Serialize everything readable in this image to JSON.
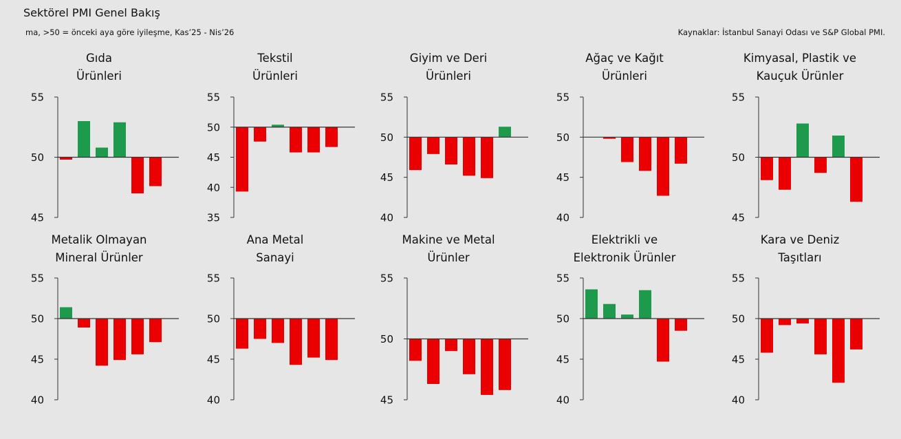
{
  "header": {
    "title": "Sektörel PMI Genel Bakış",
    "subtitle": "ma, >50 = önceki aya göre iyileşme, Kas’25 - Nis’26",
    "source": "Kaynaklar: İstanbul Sanayi Odası ve S&P Global PMI."
  },
  "colors": {
    "positive": "#1e9a4d",
    "negative": "#ea0000",
    "axis": "#333333",
    "background": "#e6e6e6"
  },
  "chart_data": [
    {
      "type": "bar",
      "title": [
        "Gıda",
        "Ürünleri"
      ],
      "baseline": 50,
      "ylim": [
        45,
        55
      ],
      "yticks": [
        45,
        50,
        55
      ],
      "values": [
        49.8,
        53.0,
        50.8,
        52.9,
        47.0,
        47.6
      ]
    },
    {
      "type": "bar",
      "title": [
        "Tekstil",
        "Ürünleri"
      ],
      "baseline": 50,
      "ylim": [
        35,
        55
      ],
      "yticks": [
        35,
        40,
        45,
        50,
        55
      ],
      "values": [
        39.3,
        47.6,
        50.4,
        45.8,
        45.8,
        46.7
      ]
    },
    {
      "type": "bar",
      "title": [
        "Giyim ve Deri",
        "Ürünleri"
      ],
      "baseline": 50,
      "ylim": [
        40,
        55
      ],
      "yticks": [
        40,
        45,
        50,
        55
      ],
      "values": [
        45.9,
        47.9,
        46.6,
        45.2,
        44.9,
        51.3
      ]
    },
    {
      "type": "bar",
      "title": [
        "Ağaç ve Kağıt",
        "Ürünleri"
      ],
      "baseline": 50,
      "ylim": [
        40,
        55
      ],
      "yticks": [
        40,
        45,
        50,
        55
      ],
      "values": [
        50.0,
        49.8,
        46.9,
        45.8,
        42.7,
        46.7
      ]
    },
    {
      "type": "bar",
      "title": [
        "Kimyasal, Plastik ve",
        "Kauçuk Ürünler"
      ],
      "baseline": 50,
      "ylim": [
        45,
        55
      ],
      "yticks": [
        45,
        50,
        55
      ],
      "values": [
        48.1,
        47.3,
        52.8,
        48.7,
        51.8,
        46.3
      ]
    },
    {
      "type": "bar",
      "title": [
        "Metalik Olmayan",
        "Mineral Ürünler"
      ],
      "baseline": 50,
      "ylim": [
        40,
        55
      ],
      "yticks": [
        40,
        45,
        50,
        55
      ],
      "values": [
        51.4,
        48.9,
        44.2,
        44.9,
        45.6,
        47.1
      ]
    },
    {
      "type": "bar",
      "title": [
        "Ana Metal",
        "Sanayi"
      ],
      "baseline": 50,
      "ylim": [
        40,
        55
      ],
      "yticks": [
        40,
        45,
        50,
        55
      ],
      "values": [
        46.3,
        47.5,
        47.0,
        44.3,
        45.2,
        44.9
      ]
    },
    {
      "type": "bar",
      "title": [
        "Makine ve Metal",
        "Ürünler"
      ],
      "baseline": 50,
      "ylim": [
        45,
        55
      ],
      "yticks": [
        45,
        50,
        55
      ],
      "values": [
        48.2,
        46.3,
        49.0,
        47.1,
        45.4,
        45.8
      ]
    },
    {
      "type": "bar",
      "title": [
        "Elektrikli ve",
        "Elektronik Ürünler"
      ],
      "baseline": 50,
      "ylim": [
        40,
        55
      ],
      "yticks": [
        40,
        45,
        50,
        55
      ],
      "values": [
        53.6,
        51.8,
        50.5,
        53.5,
        44.7,
        48.5
      ]
    },
    {
      "type": "bar",
      "title": [
        "Kara ve Deniz",
        "Taşıtları"
      ],
      "baseline": 50,
      "ylim": [
        40,
        55
      ],
      "yticks": [
        40,
        45,
        50,
        55
      ],
      "values": [
        45.8,
        49.2,
        49.4,
        45.6,
        42.1,
        46.2
      ]
    }
  ]
}
